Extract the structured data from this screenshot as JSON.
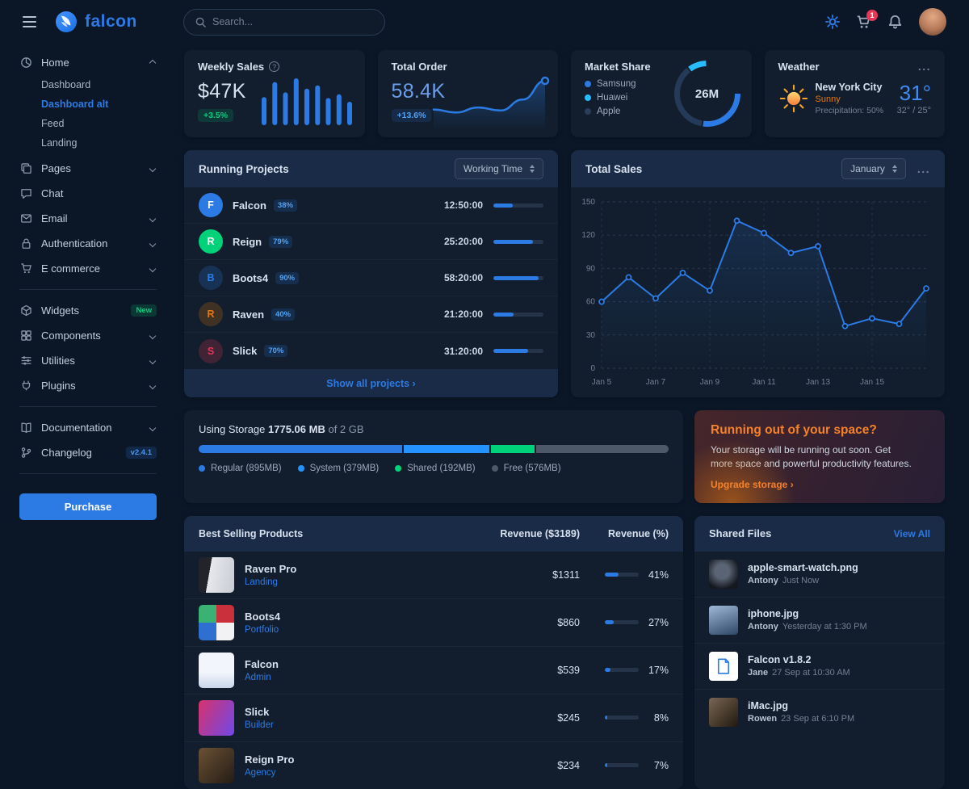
{
  "brand": "falcon",
  "topbar": {
    "search_placeholder": "Search...",
    "cart_count": "1"
  },
  "sidebar": {
    "home": {
      "label": "Home",
      "children": [
        "Dashboard",
        "Dashboard alt",
        "Feed",
        "Landing"
      ]
    },
    "items": [
      {
        "label": "Pages"
      },
      {
        "label": "Chat"
      },
      {
        "label": "Email"
      },
      {
        "label": "Authentication"
      },
      {
        "label": "E commerce"
      },
      {
        "label": "Widgets",
        "badge": "New"
      },
      {
        "label": "Components"
      },
      {
        "label": "Utilities"
      },
      {
        "label": "Plugins"
      },
      {
        "label": "Documentation"
      },
      {
        "label": "Changelog",
        "badge": "v2.4.1"
      }
    ],
    "purchase_label": "Purchase"
  },
  "weekly_sales": {
    "title": "Weekly Sales",
    "value": "$47K",
    "badge": "+3.5%"
  },
  "total_order": {
    "title": "Total Order",
    "value": "58.4K",
    "badge": "+13.6%"
  },
  "market_share": {
    "title": "Market Share",
    "center": "26M",
    "legend": [
      {
        "label": "Samsung",
        "color": "#2c7be5"
      },
      {
        "label": "Huawei",
        "color": "#27bcfd"
      },
      {
        "label": "Apple",
        "color": "#2a3e5c"
      }
    ]
  },
  "weather": {
    "title": "Weather",
    "menu": "...",
    "city": "New York City",
    "condition": "Sunny",
    "precipitation": "Precipitation: 50%",
    "temp": "31°",
    "range": "32° / 25°"
  },
  "projects": {
    "title": "Running Projects",
    "filter": "Working Time",
    "footer_link": "Show all projects ›",
    "rows": [
      {
        "initial": "F",
        "name": "Falcon",
        "badge": "38%",
        "time": "12:50:00",
        "progress": 38,
        "color": "#2c7be5",
        "soft": false
      },
      {
        "initial": "R",
        "name": "Reign",
        "badge": "79%",
        "time": "25:20:00",
        "progress": 79,
        "color": "#00d27a",
        "soft": false
      },
      {
        "initial": "B",
        "name": "Boots4",
        "badge": "90%",
        "time": "58:20:00",
        "progress": 90,
        "color": "#2c7be5",
        "soft": true
      },
      {
        "initial": "R",
        "name": "Raven",
        "badge": "40%",
        "time": "21:20:00",
        "progress": 40,
        "color": "#e5780b",
        "soft": true
      },
      {
        "initial": "S",
        "name": "Slick",
        "badge": "70%",
        "time": "31:20:00",
        "progress": 70,
        "color": "#e63757",
        "soft": true
      }
    ]
  },
  "total_sales": {
    "title": "Total Sales",
    "filter": "January",
    "menu": "..."
  },
  "storage": {
    "label": "Using Storage",
    "used": "1775.06 MB",
    "of_total": "of 2 GB",
    "segments": [
      {
        "label": "Regular (895MB)",
        "pct": 43.7,
        "color": "#2c7be5"
      },
      {
        "label": "System (379MB)",
        "pct": 18.5,
        "color": "#2593ff"
      },
      {
        "label": "Shared (192MB)",
        "pct": 9.4,
        "color": "#00d27a"
      },
      {
        "label": "Free (576MB)",
        "pct": 28.4,
        "color": "#4d5969"
      }
    ]
  },
  "space": {
    "title": "Running out of your space?",
    "body": "Your storage will be running out soon. Get more space and powerful productivity features.",
    "link": "Upgrade storage ›"
  },
  "best_selling": {
    "title": "Best Selling Products",
    "col_revenue": "Revenue ($3189)",
    "col_pct": "Revenue (%)",
    "rows": [
      {
        "name": "Raven Pro",
        "category": "Landing",
        "revenue": "$1311",
        "pct": 41,
        "pct_label": "41%"
      },
      {
        "name": "Boots4",
        "category": "Portfolio",
        "revenue": "$860",
        "pct": 27,
        "pct_label": "27%"
      },
      {
        "name": "Falcon",
        "category": "Admin",
        "revenue": "$539",
        "pct": 17,
        "pct_label": "17%"
      },
      {
        "name": "Slick",
        "category": "Builder",
        "revenue": "$245",
        "pct": 8,
        "pct_label": "8%"
      },
      {
        "name": "Reign Pro",
        "category": "Agency",
        "revenue": "$234",
        "pct": 7,
        "pct_label": "7%"
      }
    ]
  },
  "shared_files": {
    "title": "Shared Files",
    "view_all": "View All",
    "rows": [
      {
        "name": "apple-smart-watch.png",
        "owner": "Antony",
        "time": "Just Now"
      },
      {
        "name": "iphone.jpg",
        "owner": "Antony",
        "time": "Yesterday at 1:30 PM"
      },
      {
        "name": "Falcon v1.8.2",
        "owner": "Jane",
        "time": "27 Sep at 10:30 AM"
      },
      {
        "name": "iMac.jpg",
        "owner": "Rowen",
        "time": "23 Sep at 6:10 PM"
      }
    ]
  },
  "chart_data": [
    {
      "id": "weekly-sales",
      "type": "bar",
      "title": "Weekly Sales",
      "values": [
        60,
        92,
        70,
        100,
        78,
        85,
        58,
        66,
        50
      ],
      "color": "#2c7be5"
    },
    {
      "id": "total-order",
      "type": "area",
      "title": "Total Order",
      "values": [
        30,
        24,
        34,
        28,
        50,
        88
      ],
      "color": "#2c7be5"
    },
    {
      "id": "market-share",
      "type": "pie",
      "title": "Market Share",
      "center_label": "26M",
      "slices": [
        {
          "name": "Samsung",
          "value": 53,
          "color": "#2c7be5"
        },
        {
          "name": "Apple",
          "value": 37,
          "color": "#253a58"
        },
        {
          "name": "Huawei",
          "value": 10,
          "color": "#27bcfd"
        }
      ]
    },
    {
      "id": "total-sales",
      "type": "line",
      "title": "Total Sales",
      "values": [
        60,
        82,
        63,
        86,
        70,
        133,
        122,
        104,
        110,
        38,
        45,
        40,
        72
      ],
      "x_labels": [
        "Jan 5",
        "Jan 7",
        "Jan 9",
        "Jan 11",
        "Jan 13",
        "Jan 15"
      ],
      "x_label_step": 2,
      "y_ticks": [
        0,
        30,
        60,
        90,
        120,
        150
      ],
      "ylim": [
        0,
        150
      ],
      "color": "#2c7be5"
    }
  ]
}
